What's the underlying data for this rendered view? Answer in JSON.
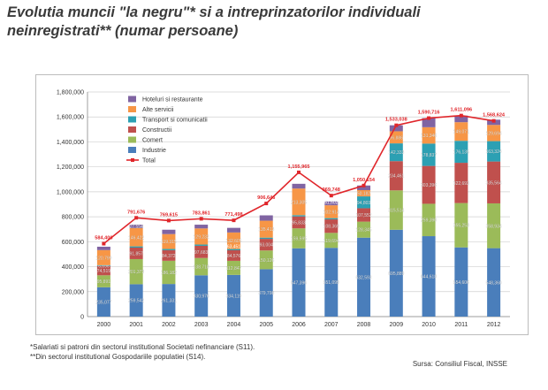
{
  "title_line1": "Evolutia muncii \"la negru\"* si a intreprinzatorilor individuali",
  "title_line2": "neinregistrati** (numar persoane)",
  "footnote1": "*Salariati si patroni din sectorul institutional Societati nefinanciare (S11).",
  "footnote2": "**Din sectorul institutional Gospodariile populatiei (S14).",
  "source": "Sursa: Consiliul Fiscal, INSSE",
  "chart_data": {
    "type": "bar",
    "stacked": true,
    "ylim": [
      0,
      1800000
    ],
    "yticks": [
      0,
      200000,
      400000,
      600000,
      800000,
      1000000,
      1200000,
      1400000,
      1600000,
      1800000
    ],
    "ytick_labels": [
      "0",
      "200,000",
      "400,000",
      "600,000",
      "800,000",
      "1,000,000",
      "1,200,000",
      "1,400,000",
      "1,600,000",
      "1,800,000"
    ],
    "categories": [
      "2000",
      "2001",
      "2002",
      "2003",
      "2004",
      "2005",
      "2006",
      "2007",
      "2008",
      "2009",
      "2010",
      "2011",
      "2012"
    ],
    "series": [
      {
        "name": "Industrie",
        "color": "#4a7ebb",
        "values": [
          235077,
          259542,
          261331,
          330976,
          334119,
          379798,
          547396,
          551099,
          632593,
          695889,
          644618,
          554606,
          548360
        ],
        "labels": [
          "235,077",
          "259,542",
          "261,331",
          "330,976",
          "334,119",
          "379,798",
          "547,396",
          "551,099",
          "632,593",
          "695,889",
          "644,618",
          "554,606",
          "548,360"
        ]
      },
      {
        "name": "Comert",
        "color": "#9bbb59",
        "values": [
          95891,
          201373,
          186182,
          138718,
          112847,
          150126,
          159595,
          119694,
          128345,
          315514,
          259390,
          355253,
          358934
        ],
        "labels": [
          "95,891",
          "201,373",
          "186,182",
          "138,718",
          "112,847",
          "150,126",
          "159,595",
          "119,694",
          "128,345",
          "315,514",
          "259,390",
          "355,253",
          "358,934"
        ]
      },
      {
        "name": "Constructii",
        "color": "#c0504d",
        "values": [
          74519,
          91857,
          84372,
          97683,
          84576,
          93004,
          95833,
          108369,
          107552,
          234461,
          303396,
          322693,
          335564
        ],
        "labels": [
          "74,519",
          "91,857",
          "84,372",
          "97,683",
          "84,576",
          "93,004",
          "95,833",
          "108,369",
          "107,552",
          "234,461",
          "303,396",
          "322,693",
          "335,564"
        ]
      },
      {
        "name": "Transport si comunicatii",
        "color": "#2ca0b3",
        "values": [
          6696,
          10000,
          10000,
          10000,
          10000,
          10000,
          10000,
          10000,
          94803,
          142333,
          178837,
          176135,
          163324
        ],
        "labels": [
          "6,696",
          "",
          "",
          "",
          "",
          "",
          "",
          "",
          "94,803",
          "142,333",
          "178,837",
          "176,135",
          "163,324"
        ]
      },
      {
        "name": "Alte servicii",
        "color": "#f79646",
        "values": [
          120799,
          146422,
          119315,
          129232,
          132605,
          135413,
          213305,
          102914,
          50182,
          96886,
          131346,
          149071,
          129694
        ],
        "labels": [
          "120,799",
          "146,422",
          "119,315",
          "129,232",
          "132,605",
          "135,413",
          "213,305",
          "102,914",
          "50,182",
          "96,886",
          "131,346",
          "149,071",
          "129,694"
        ]
      },
      {
        "name": "Hoteluri si restaurante",
        "color": "#8064a2",
        "values": [
          27000,
          27554,
          35000,
          30000,
          37000,
          43000,
          38000,
          31000,
          37000,
          48000,
          73000,
          53000,
          42000
        ],
        "labels": [
          "",
          "27,554",
          "",
          "",
          "",
          "",
          "",
          "",
          "",
          "",
          "",
          "",
          ""
        ]
      }
    ],
    "total": {
      "name": "Total",
      "color": "#e0262b",
      "values": [
        584406,
        791676,
        769615,
        783861,
        771498,
        906646,
        1155965,
        969748,
        1050154,
        1533038,
        1590716,
        1611096,
        1568624
      ],
      "labels": [
        "584,406",
        "791,676",
        "769,615",
        "783,861",
        "771,498",
        "906,646",
        "1,155,965",
        "969,748",
        "1,050,154",
        "1,533,038",
        "1,590,716",
        "1,611,096",
        "1,568,624"
      ]
    },
    "extra_labels": [
      "63,451",
      "51,502"
    ],
    "legend_order": [
      "Hoteluri si restaurante",
      "Alte servicii",
      "Transport si comunicatii",
      "Constructii",
      "Comert",
      "Industrie",
      "Total"
    ],
    "legend_position": "top-left"
  }
}
